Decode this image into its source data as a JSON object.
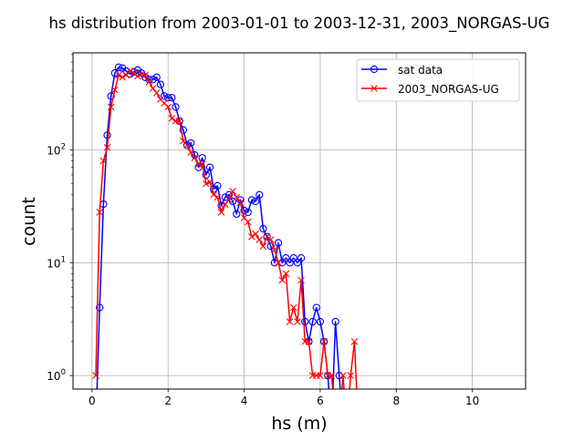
{
  "chart_data": {
    "type": "line",
    "title": "hs distribution from 2003-01-01 to 2003-12-31, 2003_NORGAS-UG",
    "xlabel": "hs (m)",
    "ylabel": "count",
    "xlim": [
      -0.5,
      11.4
    ],
    "ylim_log10": [
      -0.12,
      2.86
    ],
    "y_scale": "log",
    "grid": true,
    "legend_position": "upper right",
    "x_ticks": [
      0,
      2,
      4,
      6,
      8,
      10
    ],
    "x_tick_labels": [
      "0",
      "2",
      "4",
      "6",
      "8",
      "10"
    ],
    "y_ticks": [
      1,
      10,
      100
    ],
    "y_tick_labels": [
      "10",
      "10",
      "10"
    ],
    "y_tick_exponents": [
      "0",
      "1",
      "2"
    ],
    "series": [
      {
        "name": "sat data",
        "color": "#0000ff",
        "marker": "circle",
        "x": [
          0.1,
          0.2,
          0.3,
          0.4,
          0.5,
          0.6,
          0.7,
          0.8,
          0.9,
          1.0,
          1.1,
          1.2,
          1.3,
          1.4,
          1.5,
          1.6,
          1.7,
          1.8,
          1.9,
          2.0,
          2.1,
          2.2,
          2.3,
          2.4,
          2.5,
          2.6,
          2.7,
          2.8,
          2.9,
          3.0,
          3.1,
          3.2,
          3.3,
          3.4,
          3.5,
          3.6,
          3.7,
          3.8,
          3.9,
          4.0,
          4.1,
          4.2,
          4.3,
          4.4,
          4.5,
          4.6,
          4.7,
          4.8,
          4.9,
          5.0,
          5.1,
          5.2,
          5.3,
          5.4,
          5.5,
          5.6,
          5.7,
          5.8,
          5.9,
          6.0,
          6.1,
          6.2,
          6.3,
          6.4,
          6.5,
          6.6,
          6.7,
          6.8,
          6.9,
          7.0,
          7.1,
          7.2,
          7.3,
          7.4,
          7.5,
          7.6,
          7.7,
          7.8,
          7.9,
          8.0,
          8.1,
          8.2,
          8.3
        ],
        "y": [
          0,
          4,
          33,
          135,
          300,
          480,
          540,
          530,
          500,
          470,
          490,
          510,
          480,
          440,
          420,
          420,
          440,
          380,
          300,
          290,
          290,
          240,
          180,
          150,
          110,
          115,
          90,
          70,
          85,
          60,
          70,
          45,
          48,
          32,
          38,
          40,
          35,
          27,
          36,
          29,
          28,
          36,
          35,
          40,
          20,
          17,
          14,
          10,
          15,
          10,
          11,
          10,
          11,
          10,
          11,
          3,
          2,
          3,
          4,
          3,
          2,
          1,
          0,
          3,
          1,
          0,
          0,
          0,
          0,
          0,
          0,
          0,
          0,
          0,
          0,
          0,
          0,
          0,
          0,
          0,
          0,
          0,
          0
        ]
      },
      {
        "name": "2003_NORGAS-UG",
        "color": "#ff0000",
        "marker": "x",
        "x": [
          0.1,
          0.2,
          0.3,
          0.4,
          0.5,
          0.6,
          0.7,
          0.8,
          0.9,
          1.0,
          1.1,
          1.2,
          1.3,
          1.4,
          1.5,
          1.6,
          1.7,
          1.8,
          1.9,
          2.0,
          2.1,
          2.2,
          2.3,
          2.4,
          2.5,
          2.6,
          2.7,
          2.8,
          2.9,
          3.0,
          3.1,
          3.2,
          3.3,
          3.4,
          3.5,
          3.6,
          3.7,
          3.8,
          3.9,
          4.0,
          4.1,
          4.2,
          4.3,
          4.4,
          4.5,
          4.6,
          4.7,
          4.8,
          4.9,
          5.0,
          5.1,
          5.2,
          5.3,
          5.4,
          5.5,
          5.6,
          5.7,
          5.8,
          5.9,
          6.0,
          6.1,
          6.2,
          6.3,
          6.4,
          6.5,
          6.6,
          6.7,
          6.8,
          6.9,
          7.0,
          7.1,
          7.2,
          7.3,
          7.4,
          7.5,
          7.6,
          7.7,
          7.8,
          7.9,
          8.0,
          8.1,
          8.2,
          8.3,
          8.4,
          8.5,
          8.6,
          8.7,
          8.8,
          8.9,
          9.0,
          9.1
        ],
        "y": [
          1,
          28,
          80,
          105,
          240,
          340,
          460,
          440,
          460,
          500,
          480,
          450,
          470,
          460,
          400,
          350,
          320,
          280,
          260,
          240,
          190,
          180,
          180,
          120,
          110,
          95,
          85,
          75,
          75,
          50,
          52,
          40,
          38,
          28,
          33,
          36,
          43,
          38,
          34,
          25,
          23,
          17,
          18,
          16,
          14,
          17,
          16,
          13,
          10,
          7,
          8,
          3,
          4,
          3,
          7,
          2,
          2,
          1,
          1,
          1,
          2,
          1,
          1,
          0,
          0,
          1,
          0,
          1,
          2,
          0,
          0,
          0,
          0,
          0,
          0,
          0,
          0,
          0,
          0,
          0,
          0,
          0,
          0,
          0,
          0,
          0,
          0,
          0,
          0,
          0,
          0
        ]
      }
    ]
  }
}
